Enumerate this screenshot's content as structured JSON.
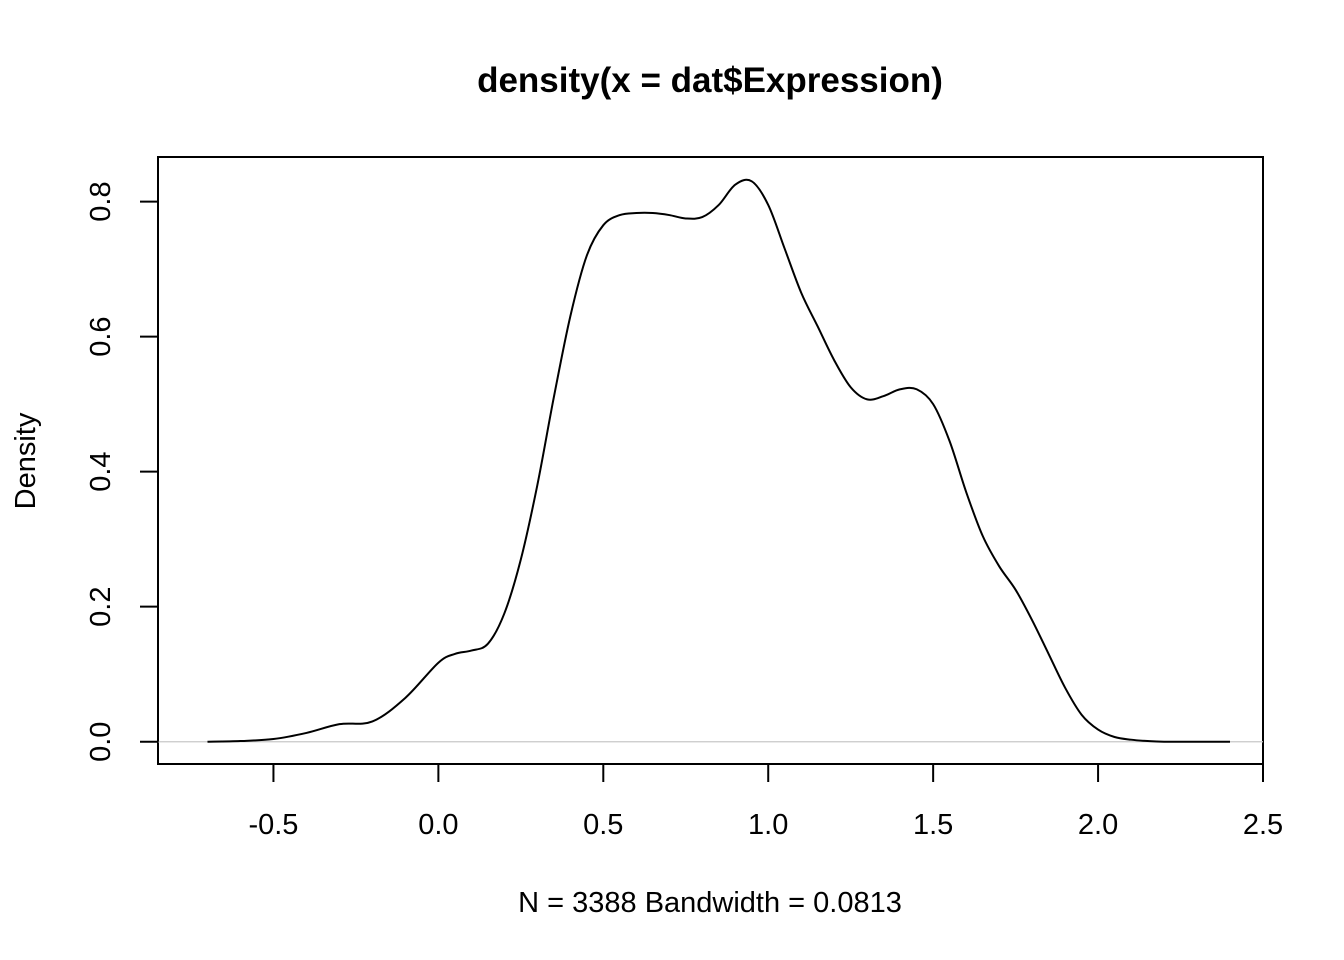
{
  "chart_data": {
    "type": "line",
    "title": "density(x = dat$Expression)",
    "xlabel": "N = 3388   Bandwidth = 0.0813",
    "ylabel": "Density",
    "xlim": [
      -0.85,
      2.5
    ],
    "ylim": [
      -0.033,
      0.866
    ],
    "x_ticks": [
      -0.5,
      0.0,
      0.5,
      1.0,
      1.5,
      2.0,
      2.5
    ],
    "x_tick_labels": [
      "-0.5",
      "0.0",
      "0.5",
      "1.0",
      "1.5",
      "2.0",
      "2.5"
    ],
    "y_ticks": [
      0.0,
      0.2,
      0.4,
      0.6,
      0.8
    ],
    "y_tick_labels": [
      "0.0",
      "0.2",
      "0.4",
      "0.6",
      "0.8"
    ],
    "zero_line": true,
    "grid": false,
    "series": [
      {
        "x": [
          -0.7,
          -0.6,
          -0.5,
          -0.4,
          -0.3,
          -0.2,
          -0.1,
          0.0,
          0.05,
          0.1,
          0.15,
          0.2,
          0.25,
          0.3,
          0.35,
          0.4,
          0.45,
          0.5,
          0.55,
          0.6,
          0.65,
          0.7,
          0.75,
          0.8,
          0.85,
          0.9,
          0.95,
          1.0,
          1.05,
          1.1,
          1.15,
          1.2,
          1.25,
          1.3,
          1.35,
          1.4,
          1.45,
          1.5,
          1.55,
          1.6,
          1.65,
          1.7,
          1.75,
          1.8,
          1.85,
          1.9,
          1.95,
          2.0,
          2.05,
          2.1,
          2.15,
          2.2,
          2.3,
          2.4
        ],
        "y": [
          0.0,
          0.001,
          0.004,
          0.013,
          0.026,
          0.03,
          0.065,
          0.117,
          0.13,
          0.135,
          0.145,
          0.19,
          0.27,
          0.38,
          0.51,
          0.63,
          0.72,
          0.765,
          0.78,
          0.783,
          0.783,
          0.78,
          0.775,
          0.777,
          0.795,
          0.825,
          0.83,
          0.795,
          0.73,
          0.665,
          0.615,
          0.565,
          0.525,
          0.507,
          0.512,
          0.522,
          0.522,
          0.5,
          0.445,
          0.37,
          0.305,
          0.26,
          0.225,
          0.18,
          0.13,
          0.08,
          0.04,
          0.018,
          0.007,
          0.003,
          0.001,
          0.0,
          0.0,
          0.0
        ]
      }
    ]
  }
}
